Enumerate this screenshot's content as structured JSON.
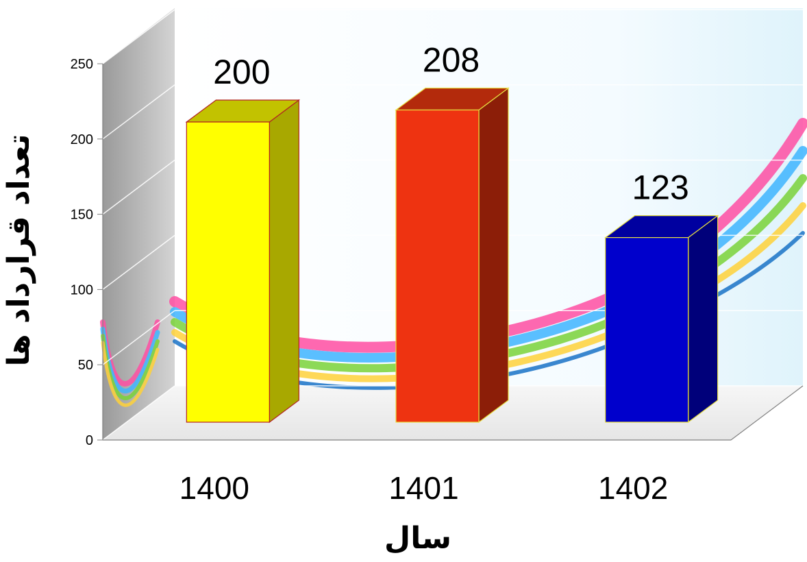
{
  "chart_data": {
    "type": "bar",
    "style": "3d-column",
    "categories": [
      "1400",
      "1401",
      "1402"
    ],
    "values": [
      200,
      208,
      123
    ],
    "data_labels": [
      "200",
      "208",
      "123"
    ],
    "bar_colors": [
      {
        "front": "#ffff00",
        "side": "#a8a800",
        "top": "#c2c200",
        "edge": "#b22222"
      },
      {
        "front": "#ee3311",
        "side": "#8c1e08",
        "top": "#b32a0c",
        "edge": "#e8e040"
      },
      {
        "front": "#0000cc",
        "side": "#00007a",
        "top": "#0000a0",
        "edge": "#e8e040"
      }
    ],
    "xlabel": "سال",
    "ylabel": "تعداد قرارداد ها",
    "ylim": [
      0,
      250
    ],
    "yticks": [
      0,
      50,
      100,
      150,
      200,
      250
    ],
    "grid": true,
    "legend": "none"
  }
}
